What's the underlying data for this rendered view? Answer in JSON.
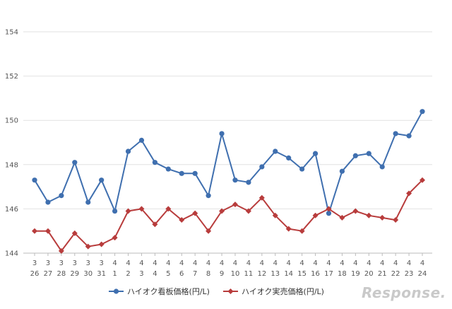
{
  "chart_data": {
    "type": "line",
    "title": "",
    "xlabel": "",
    "ylabel": "",
    "ylim": [
      144,
      154
    ],
    "yticks": [
      "144",
      "146",
      "148",
      "150",
      "152",
      "154"
    ],
    "grid": "horizontal",
    "legend_position": "bottom",
    "categories": [
      {
        "month": "3",
        "day": "26"
      },
      {
        "month": "3",
        "day": "27"
      },
      {
        "month": "3",
        "day": "28"
      },
      {
        "month": "3",
        "day": "29"
      },
      {
        "month": "3",
        "day": "30"
      },
      {
        "month": "3",
        "day": "31"
      },
      {
        "month": "4",
        "day": "1"
      },
      {
        "month": "4",
        "day": "2"
      },
      {
        "month": "4",
        "day": "3"
      },
      {
        "month": "4",
        "day": "4"
      },
      {
        "month": "4",
        "day": "5"
      },
      {
        "month": "4",
        "day": "6"
      },
      {
        "month": "4",
        "day": "7"
      },
      {
        "month": "4",
        "day": "8"
      },
      {
        "month": "4",
        "day": "9"
      },
      {
        "month": "4",
        "day": "10"
      },
      {
        "month": "4",
        "day": "11"
      },
      {
        "month": "4",
        "day": "12"
      },
      {
        "month": "4",
        "day": "13"
      },
      {
        "month": "4",
        "day": "14"
      },
      {
        "month": "4",
        "day": "15"
      },
      {
        "month": "4",
        "day": "16"
      },
      {
        "month": "4",
        "day": "17"
      },
      {
        "month": "4",
        "day": "18"
      },
      {
        "month": "4",
        "day": "19"
      },
      {
        "month": "4",
        "day": "20"
      },
      {
        "month": "4",
        "day": "21"
      },
      {
        "month": "4",
        "day": "22"
      },
      {
        "month": "4",
        "day": "23"
      },
      {
        "month": "4",
        "day": "24"
      }
    ],
    "series": [
      {
        "name": "ハイオク看板価格(円/L)",
        "color": "#3f6faf",
        "marker": "circle",
        "values": [
          147.3,
          146.3,
          146.6,
          148.1,
          146.3,
          147.3,
          145.9,
          148.6,
          149.1,
          148.1,
          147.8,
          147.6,
          147.6,
          146.6,
          149.4,
          147.3,
          147.2,
          147.9,
          148.6,
          148.3,
          147.8,
          148.5,
          145.8,
          147.7,
          148.4,
          148.5,
          147.9,
          149.4,
          149.3,
          150.4
        ]
      },
      {
        "name": "ハイオク実売価格(円/L)",
        "color": "#b83c3c",
        "marker": "diamond",
        "values": [
          145.0,
          145.0,
          144.1,
          144.9,
          144.3,
          144.4,
          144.7,
          145.9,
          146.0,
          145.3,
          146.0,
          145.5,
          145.8,
          145.0,
          145.9,
          146.2,
          145.9,
          146.5,
          145.7,
          145.1,
          145.0,
          145.7,
          146.0,
          145.6,
          145.9,
          145.7,
          145.6,
          145.5,
          146.7,
          147.3
        ]
      }
    ]
  },
  "watermark": {
    "text": "Response."
  }
}
